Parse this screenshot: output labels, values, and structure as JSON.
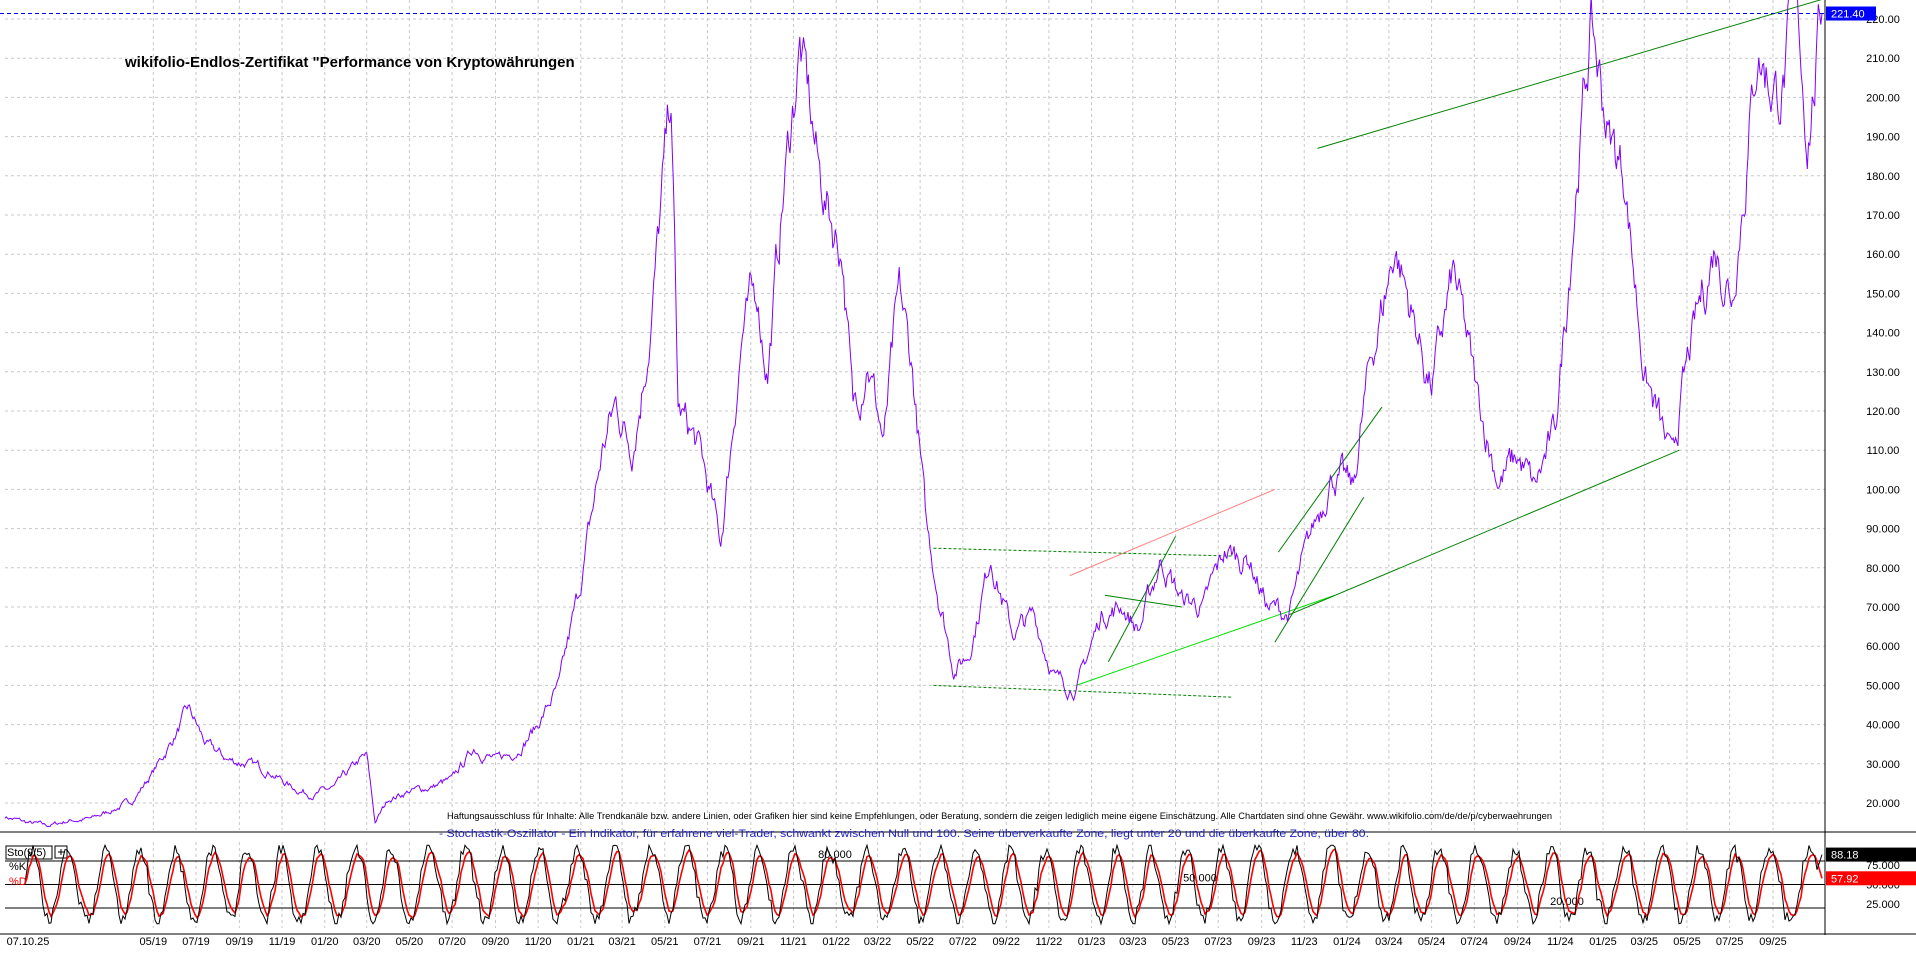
{
  "chart_data": [
    {
      "type": "line",
      "title": "wikifolio-Endlos-Zertifikat \"Performance von Kryptowährungen",
      "disclaimer": "Haftungsausschluss für Inhalte: Alle Trendkanäle bzw. andere Linien, oder Grafiken hier sind keine Empfehlungen, oder Beratung, sondern die zeigen lediglich meine eigene Einschätzung. Alle Chartdaten sind ohne Gewähr. www.wikifolio.com/de/de/p/cyberwaehrungen",
      "ylim": [
        13,
        224
      ],
      "y_ticks": [
        "20.000",
        "30.000",
        "40.000",
        "50.000",
        "60.000",
        "70.000",
        "80.000",
        "90.000",
        "100.00",
        "110.00",
        "120.00",
        "130.00",
        "140.00",
        "150.00",
        "160.00",
        "170.00",
        "180.00",
        "190.00",
        "200.00",
        "210.00",
        "220.00"
      ],
      "last_price_label": "221.40",
      "last_price": 221.4,
      "grid": true,
      "colors": {
        "price": "#7f00ff",
        "price_label_bg": "#0000ff",
        "trend": "#008000",
        "trend_light": "#00e000",
        "trend_red": "#ff8080",
        "channel_dashed": "#008000"
      },
      "series": [
        {
          "points": [
            [
              "2018-10-01",
              16.5
            ],
            [
              "2018-11-01",
              15
            ],
            [
              "2018-12-01",
              14.2
            ],
            [
              "2019-01-01",
              15.5
            ],
            [
              "2019-02-01",
              16
            ],
            [
              "2019-03-01",
              18
            ],
            [
              "2019-04-01",
              20.5
            ],
            [
              "2019-05-01",
              28
            ],
            [
              "2019-06-01",
              37
            ],
            [
              "2019-06-20",
              44
            ],
            [
              "2019-07-15",
              35
            ],
            [
              "2019-08-15",
              31
            ],
            [
              "2019-09-15",
              30
            ],
            [
              "2019-10-15",
              28
            ],
            [
              "2019-11-15",
              24
            ],
            [
              "2019-12-15",
              22
            ],
            [
              "2020-01-15",
              24
            ],
            [
              "2020-02-15",
              30
            ],
            [
              "2020-03-01",
              32
            ],
            [
              "2020-03-13",
              15
            ],
            [
              "2020-04-01",
              21
            ],
            [
              "2020-05-01",
              23
            ],
            [
              "2020-06-01",
              24
            ],
            [
              "2020-07-01",
              26
            ],
            [
              "2020-08-01",
              34
            ],
            [
              "2020-09-01",
              31
            ],
            [
              "2020-10-01",
              33
            ],
            [
              "2020-11-01",
              40
            ],
            [
              "2020-12-01",
              50
            ],
            [
              "2021-01-01",
              76
            ],
            [
              "2021-02-01",
              110
            ],
            [
              "2021-02-20",
              122
            ],
            [
              "2021-03-15",
              110
            ],
            [
              "2021-04-10",
              140
            ],
            [
              "2021-05-10",
              200
            ],
            [
              "2021-05-20",
              120
            ],
            [
              "2021-06-20",
              110
            ],
            [
              "2021-07-20",
              86
            ],
            [
              "2021-08-20",
              140
            ],
            [
              "2021-09-10",
              150
            ],
            [
              "2021-09-25",
              130
            ],
            [
              "2021-10-20",
              180
            ],
            [
              "2021-11-10",
              213
            ],
            [
              "2021-12-10",
              178
            ],
            [
              "2022-01-10",
              160
            ],
            [
              "2022-01-25",
              120
            ],
            [
              "2022-02-15",
              134
            ],
            [
              "2022-03-10",
              112
            ],
            [
              "2022-04-01",
              150
            ],
            [
              "2022-04-20",
              130
            ],
            [
              "2022-05-10",
              90
            ],
            [
              "2022-06-18",
              54
            ],
            [
              "2022-07-10",
              58
            ],
            [
              "2022-08-10",
              83
            ],
            [
              "2022-09-10",
              63
            ],
            [
              "2022-10-10",
              68
            ],
            [
              "2022-11-10",
              52
            ],
            [
              "2022-12-10",
              49
            ],
            [
              "2023-01-15",
              68
            ],
            [
              "2023-02-15",
              70
            ],
            [
              "2023-03-10",
              64
            ],
            [
              "2023-04-10",
              82
            ],
            [
              "2023-05-10",
              72
            ],
            [
              "2023-06-10",
              70
            ],
            [
              "2023-07-10",
              84
            ],
            [
              "2023-08-15",
              82
            ],
            [
              "2023-09-10",
              70
            ],
            [
              "2023-10-10",
              68
            ],
            [
              "2023-11-10",
              88
            ],
            [
              "2023-12-10",
              104
            ],
            [
              "2024-01-10",
              100
            ],
            [
              "2024-02-01",
              130
            ],
            [
              "2024-03-10",
              162
            ],
            [
              "2024-04-10",
              140
            ],
            [
              "2024-05-01",
              126
            ],
            [
              "2024-06-01",
              155
            ],
            [
              "2024-07-05",
              124
            ],
            [
              "2024-08-05",
              102
            ],
            [
              "2024-09-01",
              108
            ],
            [
              "2024-09-25",
              100
            ],
            [
              "2024-10-25",
              115
            ],
            [
              "2024-11-25",
              180
            ],
            [
              "2024-12-15",
              218
            ],
            [
              "2025-01-10",
              190
            ],
            [
              "2025-02-01",
              180
            ],
            [
              "2025-03-01",
              130
            ],
            [
              "2025-04-08",
              107
            ],
            [
              "2025-05-10",
              140
            ],
            [
              "2025-06-10",
              162
            ],
            [
              "2025-07-05",
              150
            ],
            [
              "2025-08-10",
              212
            ],
            [
              "2025-09-10",
              200
            ],
            [
              "2025-10-06",
              222
            ],
            [
              "2025-10-20",
              190
            ],
            [
              "2025-11-10",
              221.4
            ]
          ]
        }
      ]
    },
    {
      "type": "line",
      "indicator": "Stochastik-Oszillator",
      "title": "- Stochastik-Oszillator - Ein Indikator, für erfahrene viel-Trader, schwankt zwischen Null und 100. Seine überverkaufte Zone, liegt unter 20 und die überkaufte Zone, über 80.",
      "header_label": "Sto(9/5)",
      "ylim": [
        12,
        100
      ],
      "y_ticks": [
        "25.000",
        "50.000",
        "75.000"
      ],
      "reference_lines": [
        {
          "value": 80,
          "label": "80.000"
        },
        {
          "value": 50,
          "label": "50.000"
        },
        {
          "value": 20,
          "label": "20.000"
        }
      ],
      "series": [
        {
          "name": "%K",
          "last_value": 88.18,
          "last_label": "88.18",
          "color": "#000000"
        },
        {
          "name": "%D",
          "last_value": 57.92,
          "last_label": "57.92",
          "color": "#ff0000"
        }
      ]
    }
  ],
  "x_axis": {
    "labels": [
      "07.10.25",
      "05/19",
      "07/19",
      "09/19",
      "11/19",
      "01/20",
      "03/20",
      "05/20",
      "07/20",
      "09/20",
      "11/20",
      "01/21",
      "03/21",
      "05/21",
      "07/21",
      "09/21",
      "11/21",
      "01/22",
      "03/22",
      "05/22",
      "07/22",
      "09/22",
      "11/22",
      "01/23",
      "03/23",
      "05/23",
      "07/23",
      "09/23",
      "11/23",
      "01/24",
      "03/24",
      "05/24",
      "07/24",
      "09/24",
      "11/24",
      "01/25",
      "03/25",
      "05/25",
      "07/25",
      "09/25"
    ],
    "start": "2018-10-01",
    "end": "2025-11-10"
  }
}
